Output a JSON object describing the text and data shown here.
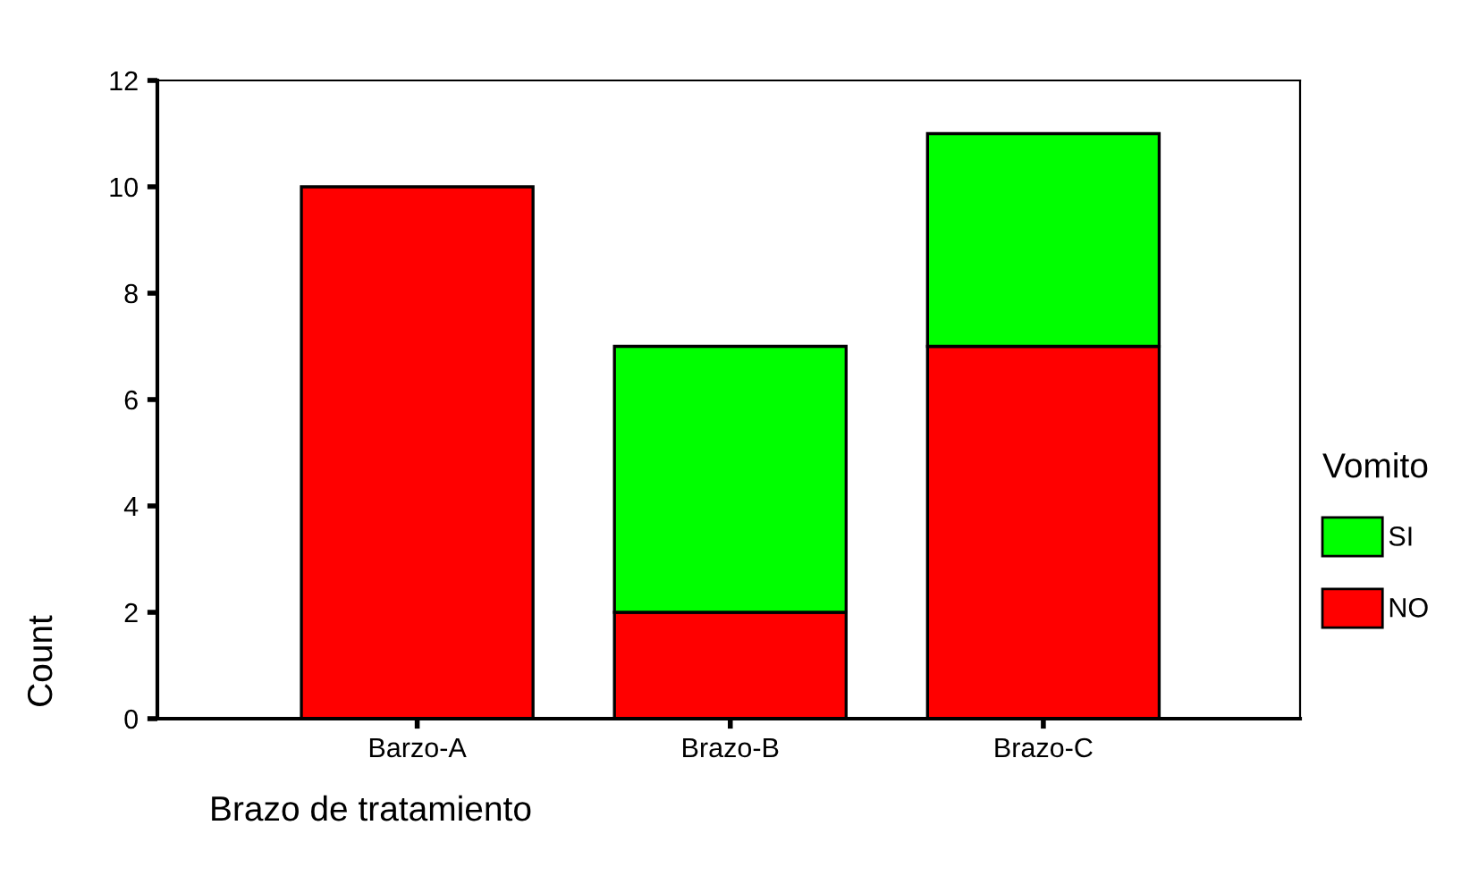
{
  "chart_data": {
    "type": "bar",
    "stacked": true,
    "xlabel": "Brazo de tratamiento",
    "ylabel": "Count",
    "legend_title": "Vomito",
    "categories": [
      "Barzo-A",
      "Brazo-B",
      "Brazo-C"
    ],
    "series": [
      {
        "name": "NO",
        "color": "#ff0000",
        "values": [
          10,
          2,
          7
        ]
      },
      {
        "name": "SI",
        "color": "#00ff00",
        "values": [
          null,
          5,
          4
        ]
      }
    ],
    "ylim": [
      0,
      12
    ],
    "yticks": [
      0,
      2,
      4,
      6,
      8,
      10,
      12
    ],
    "grid": false,
    "legend": "right"
  }
}
